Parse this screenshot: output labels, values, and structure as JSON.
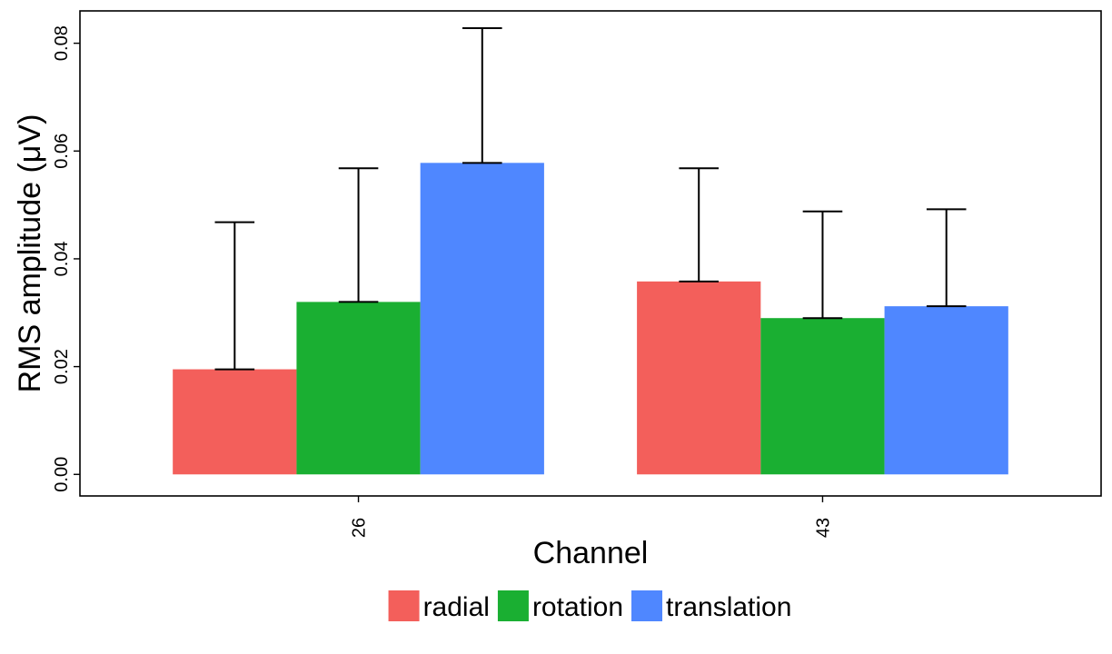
{
  "chart_data": {
    "type": "bar",
    "title": "",
    "xlabel": "Channel",
    "ylabel": "RMS amplitude (μV)",
    "categories": [
      "26",
      "43"
    ],
    "series": [
      {
        "name": "radial",
        "color": "#F35F5B",
        "values": [
          0.0195,
          0.0358
        ],
        "error_upper": [
          0.0468,
          0.0568
        ]
      },
      {
        "name": "rotation",
        "color": "#1AAF32",
        "values": [
          0.032,
          0.029
        ],
        "error_upper": [
          0.0568,
          0.0488
        ]
      },
      {
        "name": "translation",
        "color": "#4F87FF",
        "values": [
          0.0578,
          0.0312
        ],
        "error_upper": [
          0.0828,
          0.0492
        ]
      }
    ],
    "ylim": [
      -0.004,
      0.086
    ],
    "yticks": [
      0.0,
      0.02,
      0.04,
      0.06,
      0.08
    ],
    "ytick_labels": [
      "0.00",
      "0.02",
      "0.04",
      "0.06",
      "0.08"
    ],
    "grid": false,
    "legend_position": "bottom"
  }
}
